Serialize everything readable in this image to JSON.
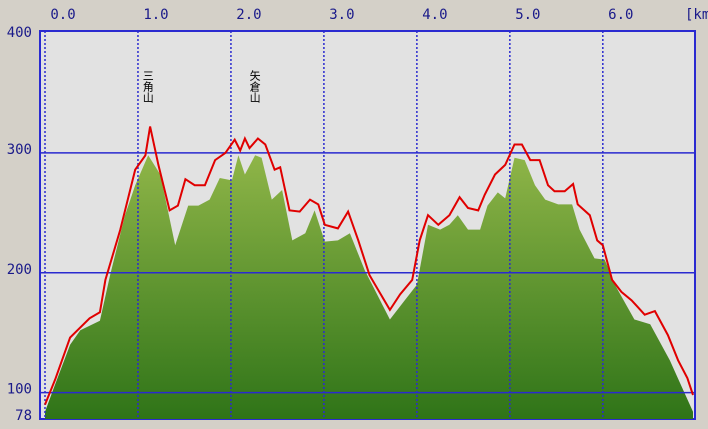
{
  "chart_data": {
    "type": "area-line",
    "x_label": "[km",
    "xlim": [
      0,
      6.97
    ],
    "ylim": [
      78,
      400
    ],
    "xticks": [
      {
        "value": 0,
        "label": "0.0"
      },
      {
        "value": 1,
        "label": "1.0"
      },
      {
        "value": 2,
        "label": "2.0"
      },
      {
        "value": 3,
        "label": "3.0"
      },
      {
        "value": 4,
        "label": "4.0"
      },
      {
        "value": 5,
        "label": "5.0"
      },
      {
        "value": 6,
        "label": "6.0"
      }
    ],
    "yticks": [
      78,
      100,
      200,
      300,
      400
    ],
    "grid": true,
    "series": [
      {
        "kind": "area",
        "color": "#5a9a2a",
        "x": [
          0.0,
          0.11,
          0.27,
          0.38,
          0.59,
          0.7,
          0.86,
          0.97,
          1.11,
          1.24,
          1.4,
          1.54,
          1.65,
          1.77,
          1.88,
          2.01,
          2.08,
          2.15,
          2.26,
          2.33,
          2.44,
          2.55,
          2.66,
          2.8,
          2.9,
          3.01,
          3.15,
          3.28,
          3.44,
          3.71,
          3.87,
          4.0,
          4.12,
          4.25,
          4.35,
          4.44,
          4.55,
          4.68,
          4.76,
          4.87,
          4.95,
          5.05,
          5.16,
          5.27,
          5.38,
          5.52,
          5.67,
          5.75,
          5.91,
          6.02,
          6.13,
          6.34,
          6.51,
          6.72,
          6.97
        ],
        "values": [
          84,
          107,
          140,
          152,
          160,
          198,
          248,
          273,
          298,
          282,
          223,
          256,
          256,
          261,
          279,
          277,
          298,
          282,
          298,
          296,
          261,
          269,
          227,
          233,
          252,
          226,
          227,
          233,
          202,
          161,
          177,
          190,
          240,
          236,
          240,
          248,
          236,
          236,
          256,
          267,
          262,
          296,
          294,
          273,
          261,
          257,
          257,
          236,
          212,
          211,
          190,
          161,
          157,
          127,
          84
        ]
      },
      {
        "kind": "line",
        "color": "#e00000",
        "x": [
          0.0,
          0.11,
          0.27,
          0.48,
          0.59,
          0.65,
          0.81,
          0.97,
          1.08,
          1.13,
          1.22,
          1.34,
          1.43,
          1.51,
          1.61,
          1.72,
          1.83,
          1.94,
          2.04,
          2.1,
          2.15,
          2.2,
          2.29,
          2.37,
          2.47,
          2.53,
          2.63,
          2.74,
          2.85,
          2.94,
          3.01,
          3.15,
          3.26,
          3.37,
          3.49,
          3.71,
          3.82,
          3.95,
          4.03,
          4.12,
          4.23,
          4.35,
          4.46,
          4.55,
          4.66,
          4.73,
          4.84,
          4.95,
          5.05,
          5.13,
          5.22,
          5.32,
          5.41,
          5.48,
          5.59,
          5.68,
          5.73,
          5.86,
          5.94,
          6.0,
          6.1,
          6.2,
          6.31,
          6.45,
          6.56,
          6.7,
          6.81,
          6.91,
          6.97
        ],
        "values": [
          90,
          111,
          146,
          162,
          167,
          194,
          236,
          286,
          298,
          322,
          290,
          252,
          256,
          278,
          273,
          273,
          294,
          300,
          311,
          302,
          312,
          304,
          312,
          307,
          286,
          288,
          252,
          251,
          261,
          257,
          240,
          237,
          251,
          227,
          198,
          169,
          182,
          194,
          227,
          248,
          240,
          248,
          263,
          254,
          252,
          265,
          282,
          290,
          307,
          307,
          294,
          294,
          273,
          268,
          268,
          274,
          257,
          248,
          227,
          223,
          194,
          184,
          177,
          165,
          168,
          148,
          127,
          112,
          98
        ]
      }
    ],
    "annotations": [
      {
        "text": "三角山",
        "x": 1.1
      },
      {
        "text": "矢倉山",
        "x": 2.25
      }
    ]
  }
}
